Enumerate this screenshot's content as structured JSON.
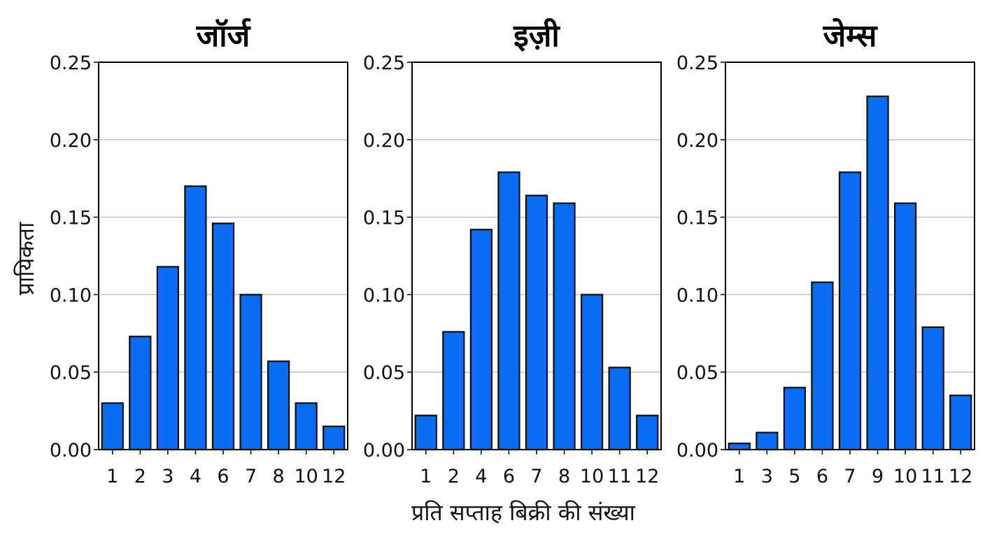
{
  "chart_data": {
    "type": "bar",
    "ylabel": "प्रायिकता",
    "xlabel": "प्रति सप्ताह बिक्री की संख्या",
    "ylim": [
      0,
      0.25
    ],
    "yticks": [
      "0.00",
      "0.05",
      "0.10",
      "0.15",
      "0.20",
      "0.25"
    ],
    "grid": true,
    "bar_color": "#0a6cf2",
    "panels": [
      {
        "title": "जॉर्ज",
        "categories": [
          "1",
          "2",
          "3",
          "4",
          "6",
          "7",
          "8",
          "10",
          "12"
        ],
        "values": [
          0.03,
          0.073,
          0.118,
          0.17,
          0.146,
          0.1,
          0.057,
          0.03,
          0.015
        ]
      },
      {
        "title": "इज़ी",
        "categories": [
          "1",
          "2",
          "4",
          "6",
          "7",
          "8",
          "10",
          "11",
          "12"
        ],
        "values": [
          0.022,
          0.076,
          0.142,
          0.179,
          0.164,
          0.159,
          0.1,
          0.053,
          0.022
        ]
      },
      {
        "title": "जेम्स",
        "categories": [
          "1",
          "3",
          "5",
          "6",
          "7",
          "9",
          "10",
          "11",
          "12"
        ],
        "values": [
          0.004,
          0.011,
          0.04,
          0.108,
          0.179,
          0.228,
          0.159,
          0.079,
          0.035
        ]
      }
    ]
  }
}
